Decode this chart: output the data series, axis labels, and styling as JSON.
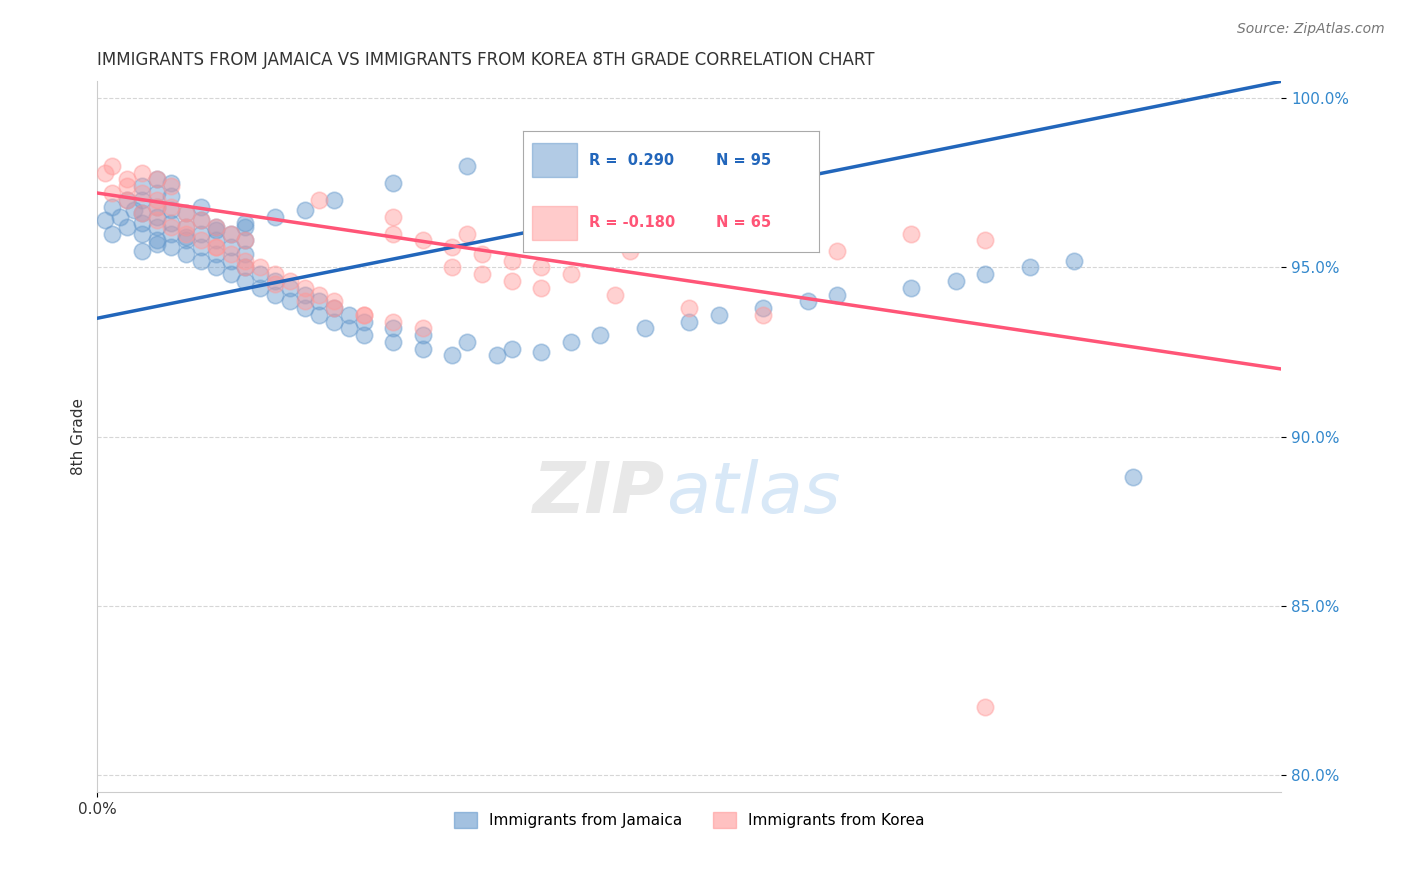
{
  "title": "IMMIGRANTS FROM JAMAICA VS IMMIGRANTS FROM KOREA 8TH GRADE CORRELATION CHART",
  "source": "Source: ZipAtlas.com",
  "ylabel": "8th Grade",
  "r_jamaica": 0.29,
  "n_jamaica": 95,
  "r_korea": -0.18,
  "n_korea": 65,
  "color_jamaica": "#6699CC",
  "color_korea": "#FF9999",
  "trend_color_jamaica": "#2266BB",
  "trend_color_korea": "#FF5577",
  "background_color": "#FFFFFF",
  "xlim": [
    0.0,
    0.08
  ],
  "ylim": [
    0.795,
    1.005
  ],
  "y_ticks": [
    0.8,
    0.85,
    0.9,
    0.95,
    1.0
  ],
  "y_tick_labels": [
    "80.0%",
    "85.0%",
    "90.0%",
    "95.0%",
    "100.0%"
  ],
  "legend_labels": [
    "Immigrants from Jamaica",
    "Immigrants from Korea"
  ],
  "jamaica_trend_x0": 0.0,
  "jamaica_trend_y0": 0.935,
  "jamaica_trend_x1": 0.08,
  "jamaica_trend_y1": 1.005,
  "korea_trend_x0": 0.0,
  "korea_trend_y0": 0.972,
  "korea_trend_x1": 0.08,
  "korea_trend_y1": 0.92,
  "jamaica_x": [
    0.0005,
    0.001,
    0.001,
    0.0015,
    0.002,
    0.002,
    0.0025,
    0.003,
    0.003,
    0.003,
    0.003,
    0.003,
    0.004,
    0.004,
    0.004,
    0.004,
    0.004,
    0.004,
    0.005,
    0.005,
    0.005,
    0.005,
    0.005,
    0.005,
    0.006,
    0.006,
    0.006,
    0.006,
    0.007,
    0.007,
    0.007,
    0.007,
    0.007,
    0.008,
    0.008,
    0.008,
    0.008,
    0.009,
    0.009,
    0.009,
    0.009,
    0.01,
    0.01,
    0.01,
    0.01,
    0.01,
    0.011,
    0.011,
    0.012,
    0.012,
    0.013,
    0.013,
    0.014,
    0.014,
    0.015,
    0.015,
    0.016,
    0.016,
    0.017,
    0.017,
    0.018,
    0.018,
    0.02,
    0.02,
    0.022,
    0.022,
    0.024,
    0.025,
    0.027,
    0.028,
    0.03,
    0.032,
    0.034,
    0.037,
    0.04,
    0.042,
    0.045,
    0.048,
    0.05,
    0.055,
    0.058,
    0.06,
    0.063,
    0.066,
    0.07,
    0.003,
    0.004,
    0.006,
    0.008,
    0.01,
    0.012,
    0.014,
    0.016,
    0.02,
    0.025
  ],
  "jamaica_y": [
    0.964,
    0.96,
    0.968,
    0.965,
    0.962,
    0.97,
    0.967,
    0.96,
    0.963,
    0.966,
    0.97,
    0.974,
    0.958,
    0.962,
    0.965,
    0.968,
    0.972,
    0.976,
    0.956,
    0.96,
    0.963,
    0.967,
    0.971,
    0.975,
    0.954,
    0.958,
    0.962,
    0.966,
    0.952,
    0.956,
    0.96,
    0.964,
    0.968,
    0.95,
    0.954,
    0.958,
    0.962,
    0.948,
    0.952,
    0.956,
    0.96,
    0.946,
    0.95,
    0.954,
    0.958,
    0.962,
    0.944,
    0.948,
    0.942,
    0.946,
    0.94,
    0.944,
    0.938,
    0.942,
    0.936,
    0.94,
    0.934,
    0.938,
    0.932,
    0.936,
    0.93,
    0.934,
    0.928,
    0.932,
    0.926,
    0.93,
    0.924,
    0.928,
    0.924,
    0.926,
    0.925,
    0.928,
    0.93,
    0.932,
    0.934,
    0.936,
    0.938,
    0.94,
    0.942,
    0.944,
    0.946,
    0.948,
    0.95,
    0.952,
    0.888,
    0.955,
    0.957,
    0.959,
    0.961,
    0.963,
    0.965,
    0.967,
    0.97,
    0.975,
    0.98
  ],
  "korea_x": [
    0.0005,
    0.001,
    0.001,
    0.002,
    0.002,
    0.003,
    0.003,
    0.003,
    0.004,
    0.004,
    0.004,
    0.005,
    0.005,
    0.005,
    0.006,
    0.006,
    0.007,
    0.007,
    0.008,
    0.008,
    0.009,
    0.009,
    0.01,
    0.01,
    0.011,
    0.012,
    0.013,
    0.014,
    0.015,
    0.016,
    0.018,
    0.02,
    0.022,
    0.024,
    0.026,
    0.028,
    0.03,
    0.032,
    0.034,
    0.036,
    0.014,
    0.016,
    0.018,
    0.02,
    0.022,
    0.024,
    0.026,
    0.028,
    0.03,
    0.035,
    0.04,
    0.045,
    0.05,
    0.055,
    0.06,
    0.002,
    0.004,
    0.006,
    0.008,
    0.01,
    0.012,
    0.015,
    0.02,
    0.025,
    0.06
  ],
  "korea_y": [
    0.978,
    0.972,
    0.98,
    0.97,
    0.976,
    0.966,
    0.972,
    0.978,
    0.964,
    0.97,
    0.976,
    0.962,
    0.968,
    0.974,
    0.96,
    0.966,
    0.958,
    0.964,
    0.956,
    0.962,
    0.954,
    0.96,
    0.952,
    0.958,
    0.95,
    0.948,
    0.946,
    0.944,
    0.942,
    0.94,
    0.936,
    0.96,
    0.958,
    0.956,
    0.954,
    0.952,
    0.95,
    0.948,
    0.96,
    0.955,
    0.94,
    0.938,
    0.936,
    0.934,
    0.932,
    0.95,
    0.948,
    0.946,
    0.944,
    0.942,
    0.938,
    0.936,
    0.955,
    0.96,
    0.958,
    0.974,
    0.968,
    0.962,
    0.956,
    0.95,
    0.945,
    0.97,
    0.965,
    0.96,
    0.82
  ]
}
